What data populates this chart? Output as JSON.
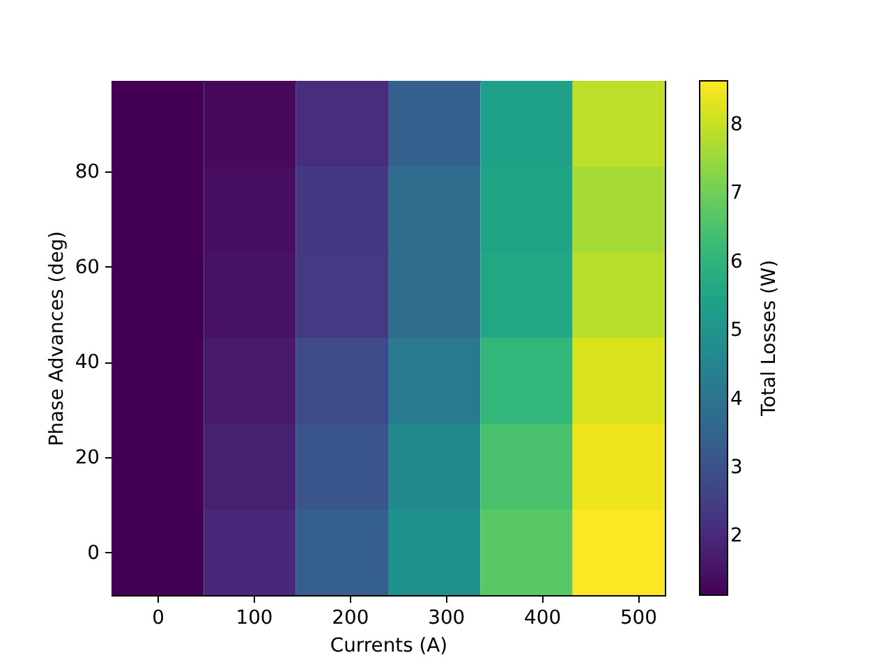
{
  "chart_data": {
    "type": "heatmap",
    "xlabel": "Currents (A)",
    "ylabel": "Phase Advances (deg)",
    "clabel": "Total Losses (W)",
    "x": [
      0,
      96,
      192,
      288,
      384,
      480
    ],
    "xlim": [
      -48,
      528
    ],
    "xticks": [
      0,
      100,
      200,
      300,
      400,
      500
    ],
    "ylim": [
      -9,
      99
    ],
    "yticks": [
      0,
      20,
      40,
      60,
      80
    ],
    "cells": [
      [
        1.14,
        1.3,
        2.1,
        3.4,
        5.4,
        7.9
      ],
      [
        1.14,
        1.4,
        2.35,
        3.75,
        5.5,
        7.65
      ],
      [
        1.14,
        1.48,
        2.4,
        3.8,
        5.6,
        7.85
      ],
      [
        1.14,
        1.65,
        2.8,
        4.2,
        6.1,
        8.2
      ],
      [
        1.14,
        1.78,
        3.1,
        4.65,
        6.5,
        8.45
      ],
      [
        1.14,
        1.97,
        3.4,
        4.9,
        6.7,
        8.64
      ]
    ],
    "clim": [
      1.14,
      8.64
    ],
    "cticks": [
      2,
      3,
      4,
      5,
      6,
      7,
      8
    ]
  }
}
